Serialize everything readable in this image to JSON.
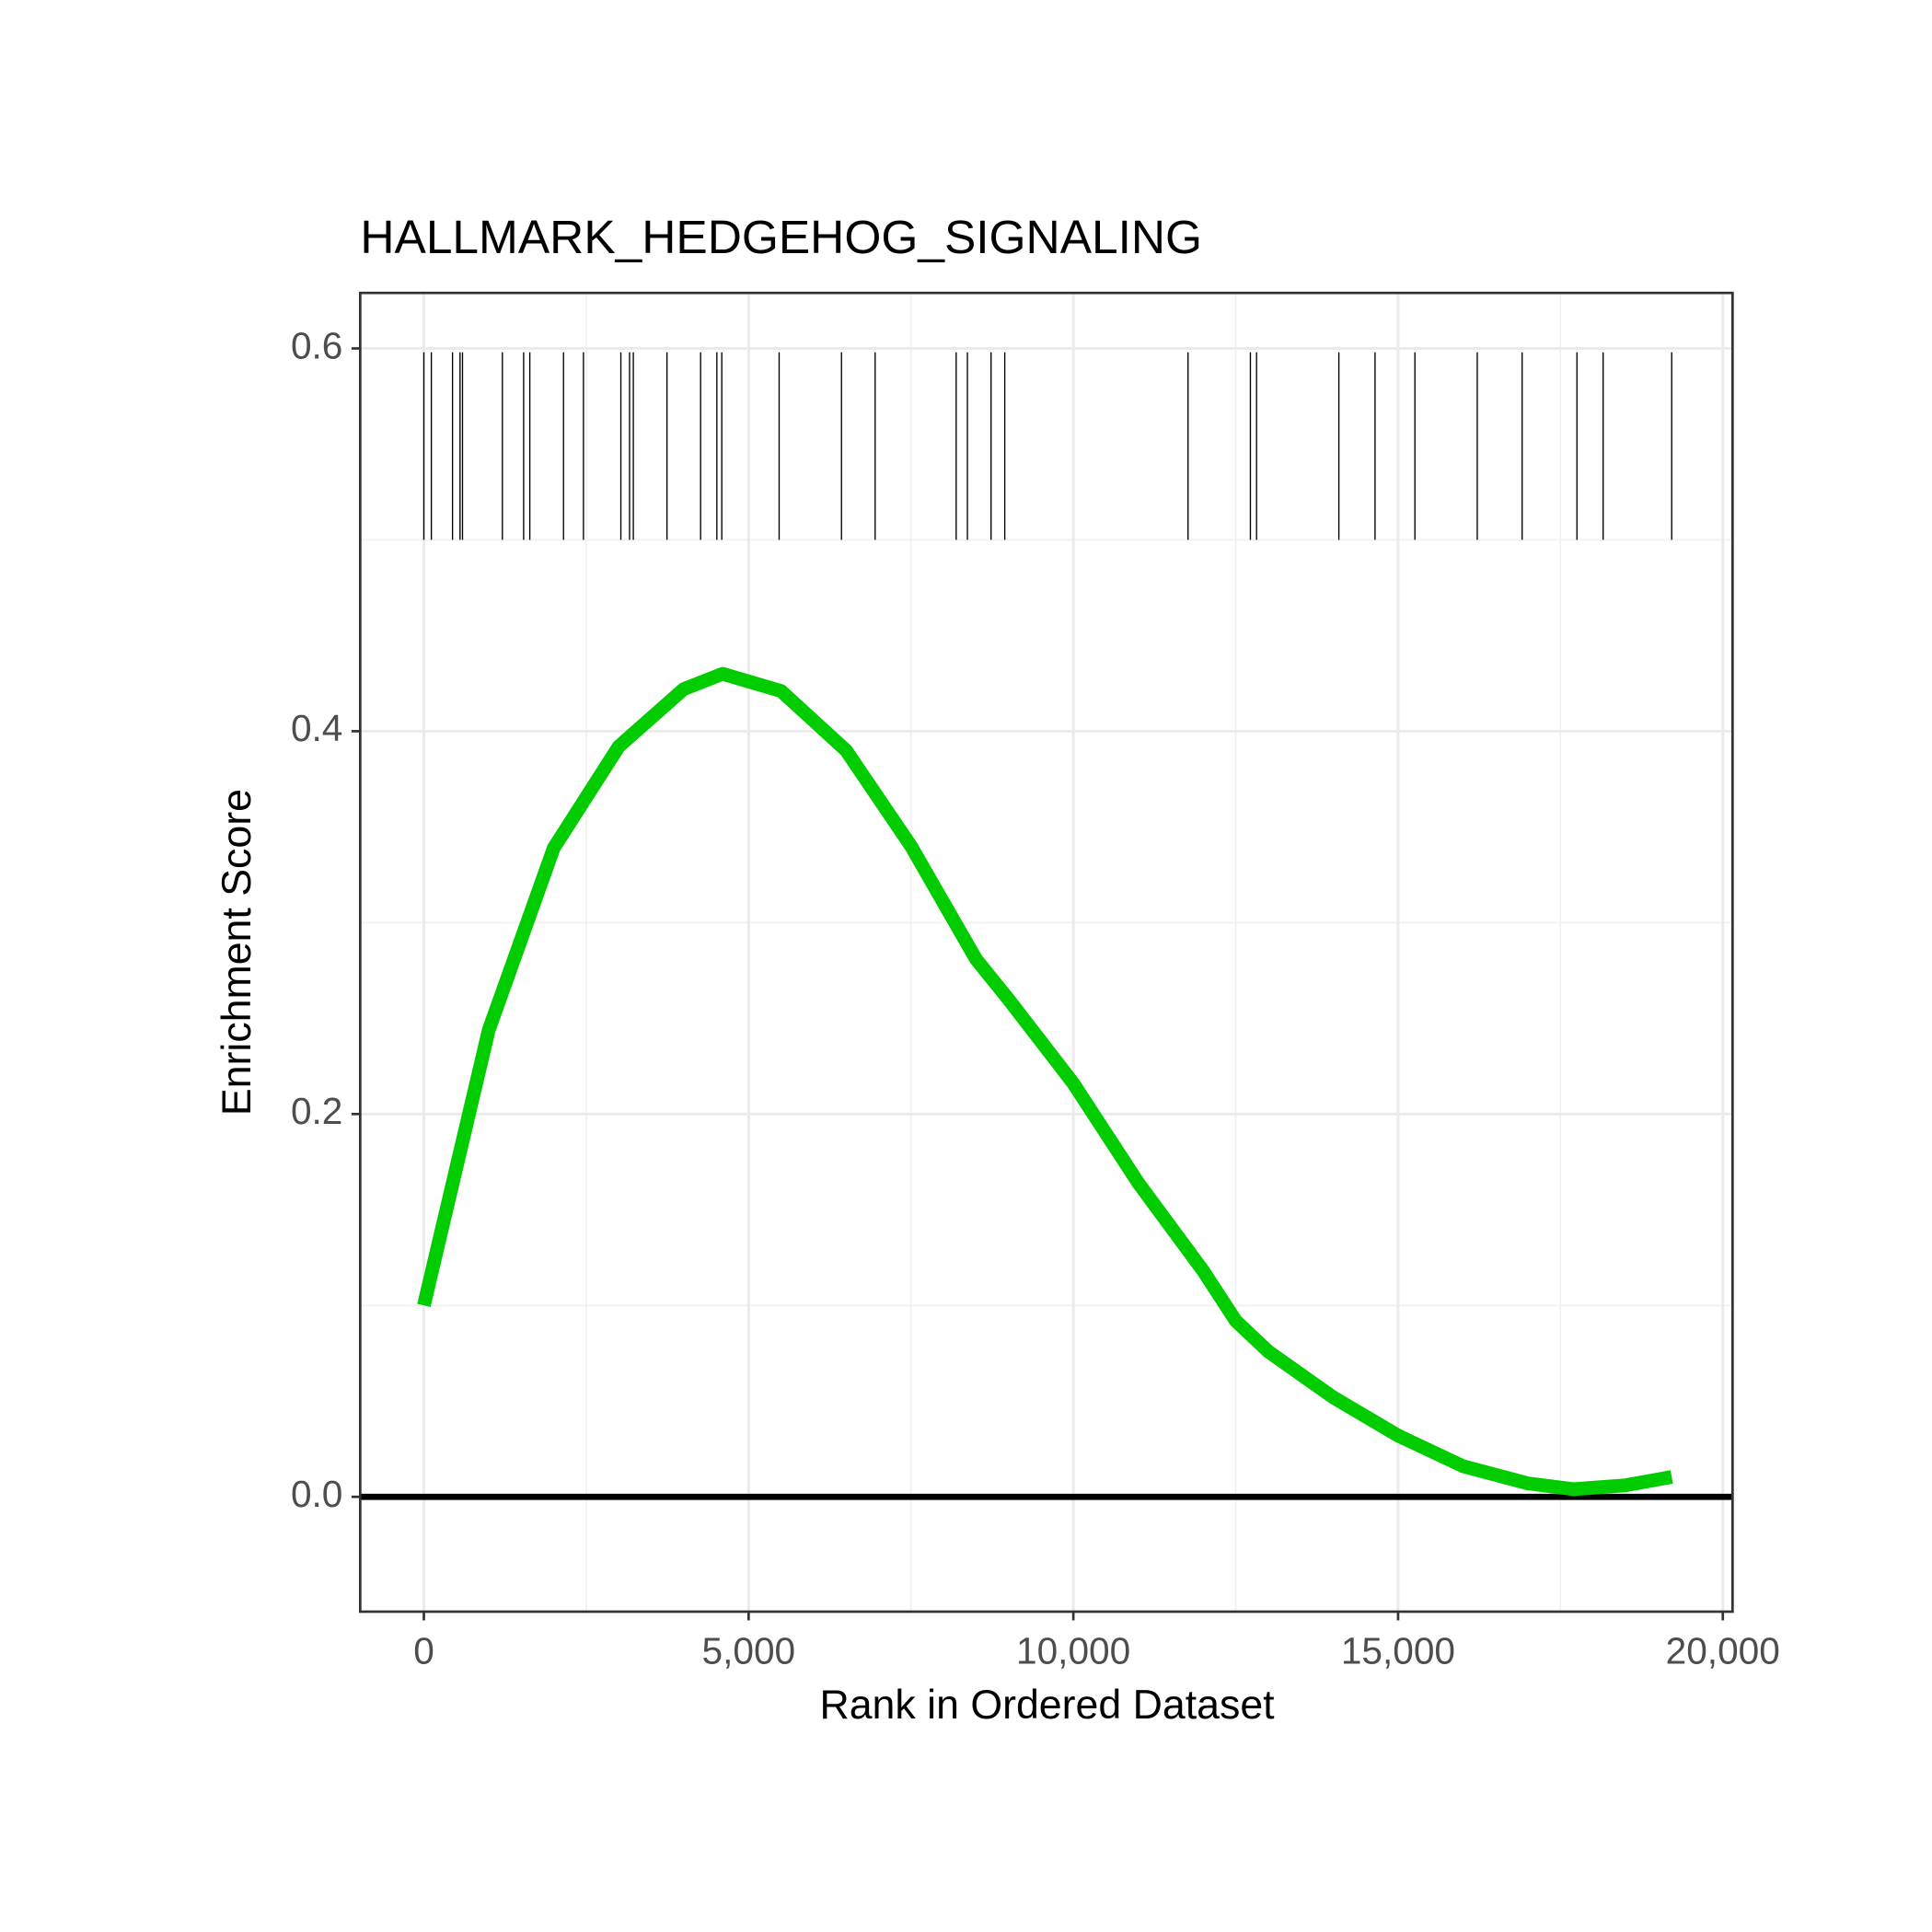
{
  "chart_data": {
    "type": "line",
    "title": "HALLMARK_HEDGEHOG_SIGNALING",
    "xlabel": "Rank in Ordered Dataset",
    "ylabel": "Enrichment Score",
    "xlim": [
      -980,
      20150
    ],
    "ylim": [
      -0.06,
      0.629
    ],
    "xticks": [
      0,
      {
        "value": 5000,
        "label": "5,000"
      },
      {
        "value": 10000,
        "label": "10,000"
      },
      {
        "value": 15000,
        "label": "15,000"
      },
      {
        "value": 20000,
        "label": "20,000"
      }
    ],
    "yticks": [
      {
        "value": 0,
        "label": "0.0"
      },
      0.2,
      0.4,
      0.6
    ],
    "x_minor_ticks": [
      2500,
      7500,
      12500,
      17500
    ],
    "y_minor_ticks": [
      0.1,
      0.3,
      0.5
    ],
    "grid": true,
    "hline": 0,
    "x": [
      0,
      1000,
      2000,
      3000,
      4000,
      4600,
      5500,
      6500,
      7500,
      8500,
      9000,
      10000,
      11000,
      12000,
      12500,
      13000,
      14000,
      15000,
      16000,
      17000,
      17700,
      18500,
      19213
    ],
    "series": [
      {
        "color": "#00cc00",
        "values": [
          0.1,
          0.244,
          0.339,
          0.392,
          0.422,
          0.43,
          0.421,
          0.39,
          0.34,
          0.281,
          0.26,
          0.216,
          0.164,
          0.118,
          0.092,
          0.076,
          0.052,
          0.032,
          0.016,
          0.007,
          0.004,
          0.006,
          0.0104
        ]
      }
    ],
    "rug_x": [
      0,
      115,
      441,
      557,
      595,
      1209,
      1536,
      1631,
      2150,
      2457,
      3033,
      3167,
      3225,
      3743,
      4261,
      4511,
      4587,
      5470,
      6430,
      6948,
      8196,
      8369,
      8733,
      8944,
      11766,
      12726,
      12821,
      14088,
      14645,
      15259,
      16219,
      16910,
      17754,
      18157,
      19213
    ],
    "rug_y": [
      0.5,
      0.598
    ]
  }
}
